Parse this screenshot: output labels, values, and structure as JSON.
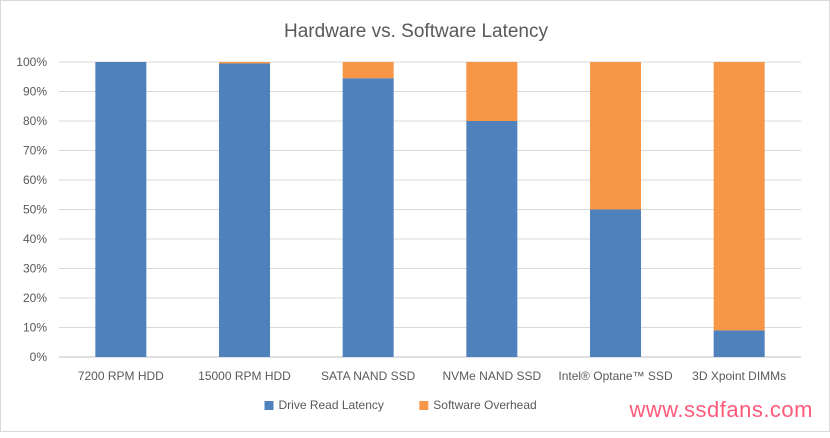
{
  "chart_data": {
    "type": "bar",
    "stacked": true,
    "title": "Hardware vs. Software Latency",
    "categories": [
      "7200 RPM HDD",
      "15000 RPM HDD",
      "SATA NAND SSD",
      "NVMe NAND SSD",
      "Intel® Optane™ SSD",
      "3D Xpoint DIMMs"
    ],
    "series": [
      {
        "name": "Drive Read Latency",
        "color": "#4f81bd",
        "values": [
          100,
          99.5,
          94.5,
          80,
          50,
          9
        ]
      },
      {
        "name": "Software Overhead",
        "color": "#f79646",
        "values": [
          0,
          0.5,
          5.5,
          20,
          50,
          91
        ]
      }
    ],
    "ylim": [
      0,
      100
    ],
    "yticks": [
      "0%",
      "10%",
      "20%",
      "30%",
      "40%",
      "50%",
      "60%",
      "70%",
      "80%",
      "90%",
      "100%"
    ],
    "grid": true,
    "legend": "bottom"
  },
  "watermark": "www.ssdfans.com"
}
